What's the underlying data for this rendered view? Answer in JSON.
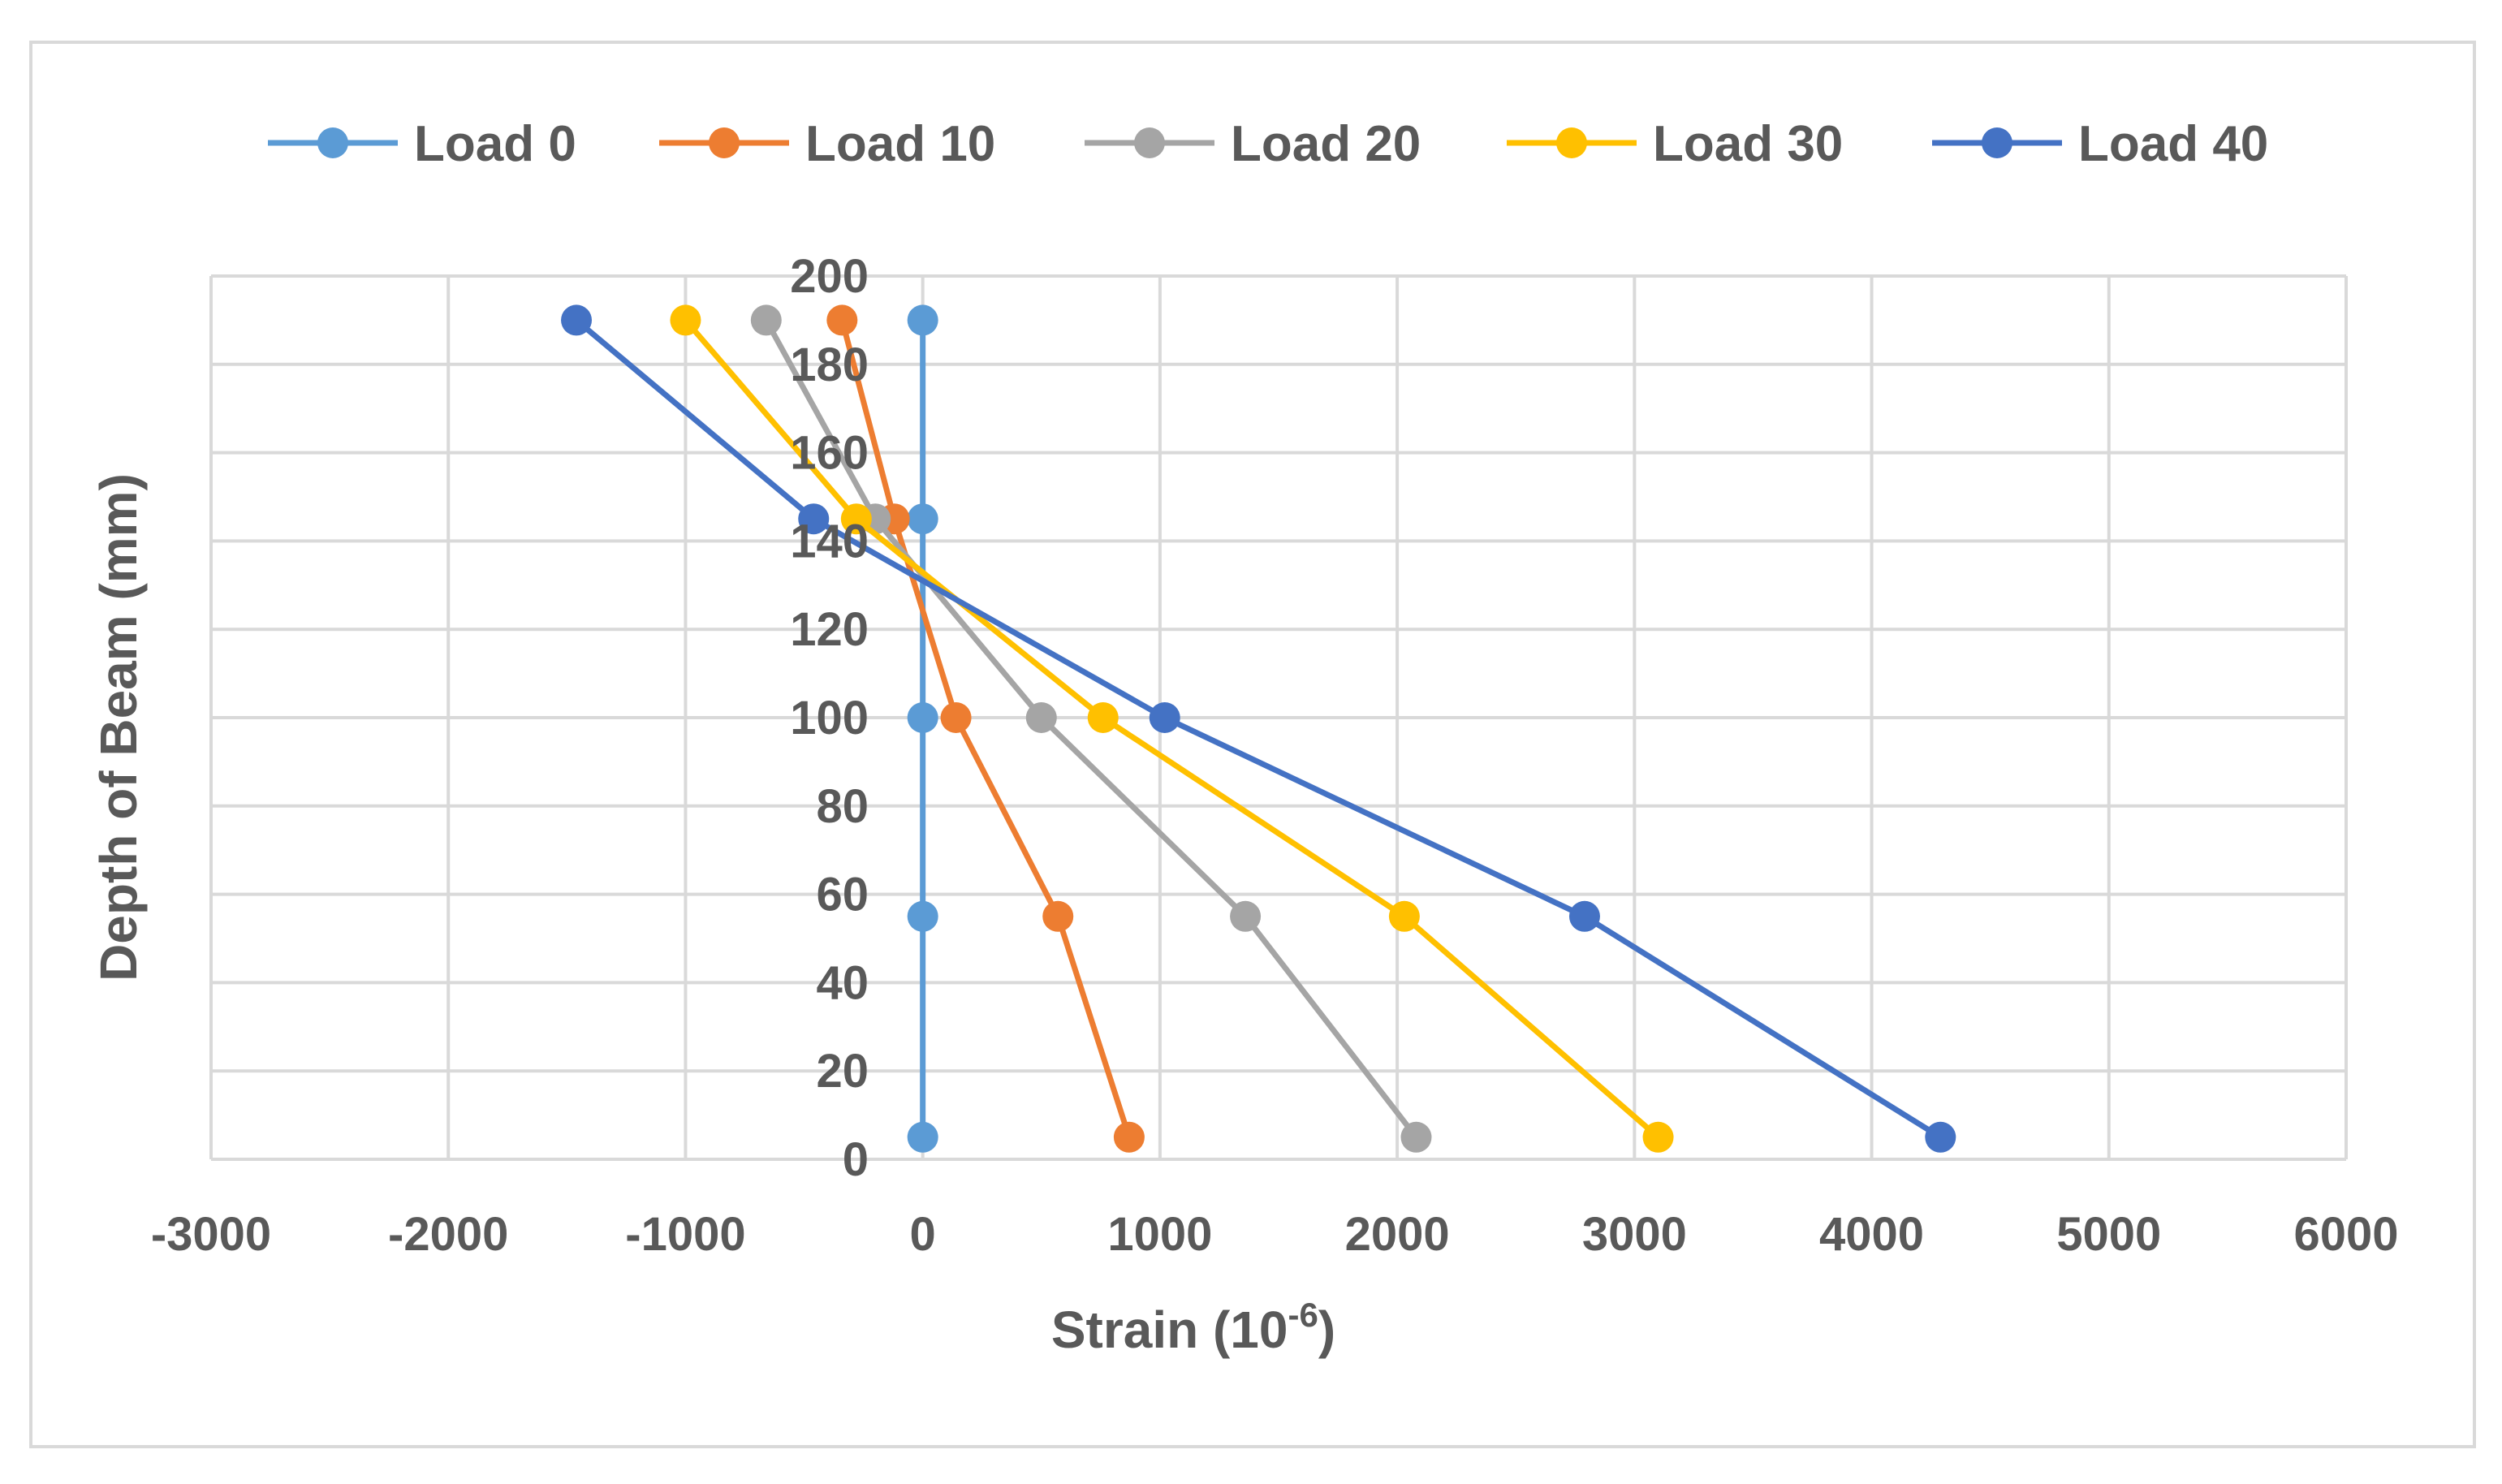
{
  "chart_data": {
    "type": "line",
    "title": "",
    "xlabel": "Strain (10",
    "xlabel_sup": "-6",
    "xlabel_close": ")",
    "ylabel": "Depth of  Beam (mm)",
    "xlim": [
      -3000,
      6000
    ],
    "ylim": [
      0,
      200
    ],
    "x_ticks": [
      -3000,
      -2000,
      -1000,
      0,
      1000,
      2000,
      3000,
      4000,
      5000,
      6000
    ],
    "y_ticks": [
      0,
      20,
      40,
      60,
      80,
      100,
      120,
      140,
      160,
      180,
      200
    ],
    "grid": true,
    "legend_position": "top",
    "depths": [
      190,
      145,
      100,
      55,
      5
    ],
    "series": [
      {
        "name": "Load 0",
        "color": "#5B9BD5",
        "x": [
          0,
          0,
          0,
          0,
          0
        ]
      },
      {
        "name": "Load 10",
        "color": "#ED7D31",
        "x": [
          -340,
          -120,
          140,
          570,
          870
        ]
      },
      {
        "name": "Load 20",
        "color": "#A5A5A5",
        "x": [
          -660,
          -200,
          500,
          1360,
          2080
        ]
      },
      {
        "name": "Load 30",
        "color": "#FFC000",
        "x": [
          -1000,
          -280,
          760,
          2030,
          3100
        ]
      },
      {
        "name": "Load 40",
        "color": "#4472C4",
        "x": [
          -1460,
          -460,
          1020,
          2790,
          4290
        ]
      }
    ]
  }
}
